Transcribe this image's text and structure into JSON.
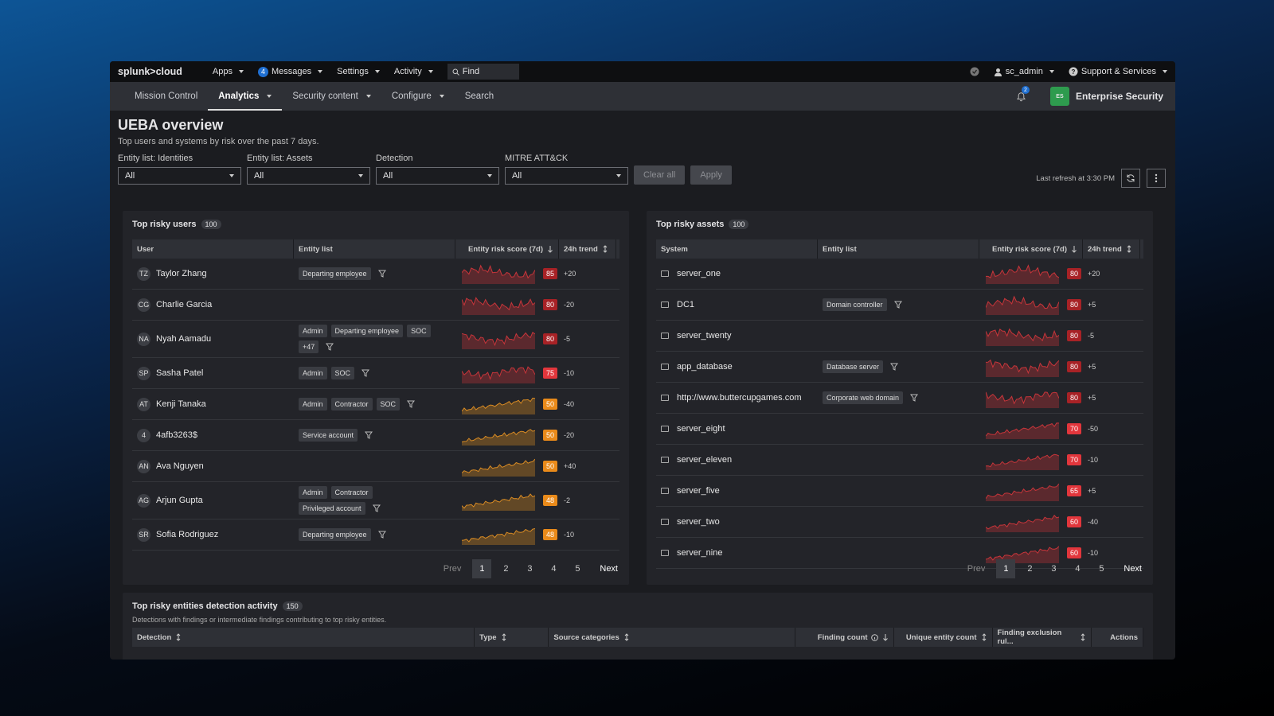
{
  "topbar": {
    "brand": "splunk>cloud",
    "menus": [
      "Apps",
      "Messages",
      "Settings",
      "Activity"
    ],
    "message_badge": 4,
    "find": "Find",
    "user": "sc_admin",
    "support": "Support & Services"
  },
  "nav": {
    "items": [
      "Mission Control",
      "Analytics",
      "Security content",
      "Configure",
      "Search"
    ],
    "notification_badge": 2,
    "app_icon": "ES",
    "app": "Enterprise Security"
  },
  "header": {
    "title": "UEBA overview",
    "subtitle": "Top users and systems by risk over the past 7 days."
  },
  "filters": [
    {
      "label": "Entity list: Identities",
      "value": "All"
    },
    {
      "label": "Entity list: Assets",
      "value": "All"
    },
    {
      "label": "Detection",
      "value": "All"
    },
    {
      "label": "MITRE ATT&CK",
      "value": "All"
    }
  ],
  "buttons": {
    "clear": "Clear all",
    "apply": "Apply"
  },
  "last_refresh": "Last refresh at 3:30 PM",
  "users_panel": {
    "title": "Top risky users",
    "count": 100,
    "columns": [
      "User",
      "Entity list",
      "Entity risk score (7d)",
      "24h trend"
    ],
    "rows": [
      {
        "initials": "TZ",
        "name": "Taylor Zhang",
        "tags": [
          "Departing employee"
        ],
        "score": 85,
        "trend": "+20"
      },
      {
        "initials": "CG",
        "name": "Charlie Garcia",
        "tags": [],
        "score": 80,
        "trend": "-20"
      },
      {
        "initials": "NA",
        "name": "Nyah Aamadu",
        "tags": [
          "Admin",
          "Departing employee",
          "SOC",
          "+47"
        ],
        "score": 80,
        "trend": "-5"
      },
      {
        "initials": "SP",
        "name": "Sasha Patel",
        "tags": [
          "Admin",
          "SOC"
        ],
        "score": 75,
        "trend": "-10"
      },
      {
        "initials": "AT",
        "name": "Kenji Tanaka",
        "tags": [
          "Admin",
          "Contractor",
          "SOC"
        ],
        "score": 50,
        "trend": "-40"
      },
      {
        "initials": "4",
        "name": "4afb3263$",
        "tags": [
          "Service account"
        ],
        "score": 50,
        "trend": "-20"
      },
      {
        "initials": "AN",
        "name": "Ava Nguyen",
        "tags": [],
        "score": 50,
        "trend": "+40"
      },
      {
        "initials": "AG",
        "name": "Arjun Gupta",
        "tags": [
          "Admin",
          "Contractor",
          "Privileged account"
        ],
        "score": 48,
        "trend": "-2"
      },
      {
        "initials": "SR",
        "name": "Sofia Rodriguez",
        "tags": [
          "Departing employee"
        ],
        "score": 48,
        "trend": "-10"
      }
    ],
    "pagination": {
      "prev": "Prev",
      "pages": [
        1,
        2,
        3,
        4,
        5
      ],
      "next": "Next"
    }
  },
  "assets_panel": {
    "title": "Top risky assets",
    "count": 100,
    "columns": [
      "System",
      "Entity list",
      "Entity risk score (7d)",
      "24h trend"
    ],
    "rows": [
      {
        "name": "server_one",
        "tags": [],
        "score": 80,
        "trend": "+20"
      },
      {
        "name": "DC1",
        "tags": [
          "Domain controller"
        ],
        "score": 80,
        "trend": "+5"
      },
      {
        "name": "server_twenty",
        "tags": [],
        "score": 80,
        "trend": "-5"
      },
      {
        "name": "app_database",
        "tags": [
          "Database server"
        ],
        "score": 80,
        "trend": "+5"
      },
      {
        "name": "http://www.buttercupgames.com",
        "tags": [
          "Corporate web domain"
        ],
        "score": 80,
        "trend": "+5"
      },
      {
        "name": "server_eight",
        "tags": [],
        "score": 70,
        "trend": "-50"
      },
      {
        "name": "server_eleven",
        "tags": [],
        "score": 70,
        "trend": "-10"
      },
      {
        "name": "server_five",
        "tags": [],
        "score": 65,
        "trend": "+5"
      },
      {
        "name": "server_two",
        "tags": [],
        "score": 60,
        "trend": "-40"
      },
      {
        "name": "server_nine",
        "tags": [],
        "score": 60,
        "trend": "-10"
      }
    ],
    "pagination": {
      "prev": "Prev",
      "pages": [
        1,
        2,
        3,
        4,
        5
      ],
      "next": "Next"
    }
  },
  "detection_panel": {
    "title": "Top risky entities detection activity",
    "count": 150,
    "subtitle": "Detections with findings or intermediate findings contributing to top risky entities.",
    "columns": [
      "Detection",
      "Type",
      "Source categories",
      "Finding count",
      "Unique entity count",
      "Finding exclusion rul...",
      "Actions"
    ]
  }
}
